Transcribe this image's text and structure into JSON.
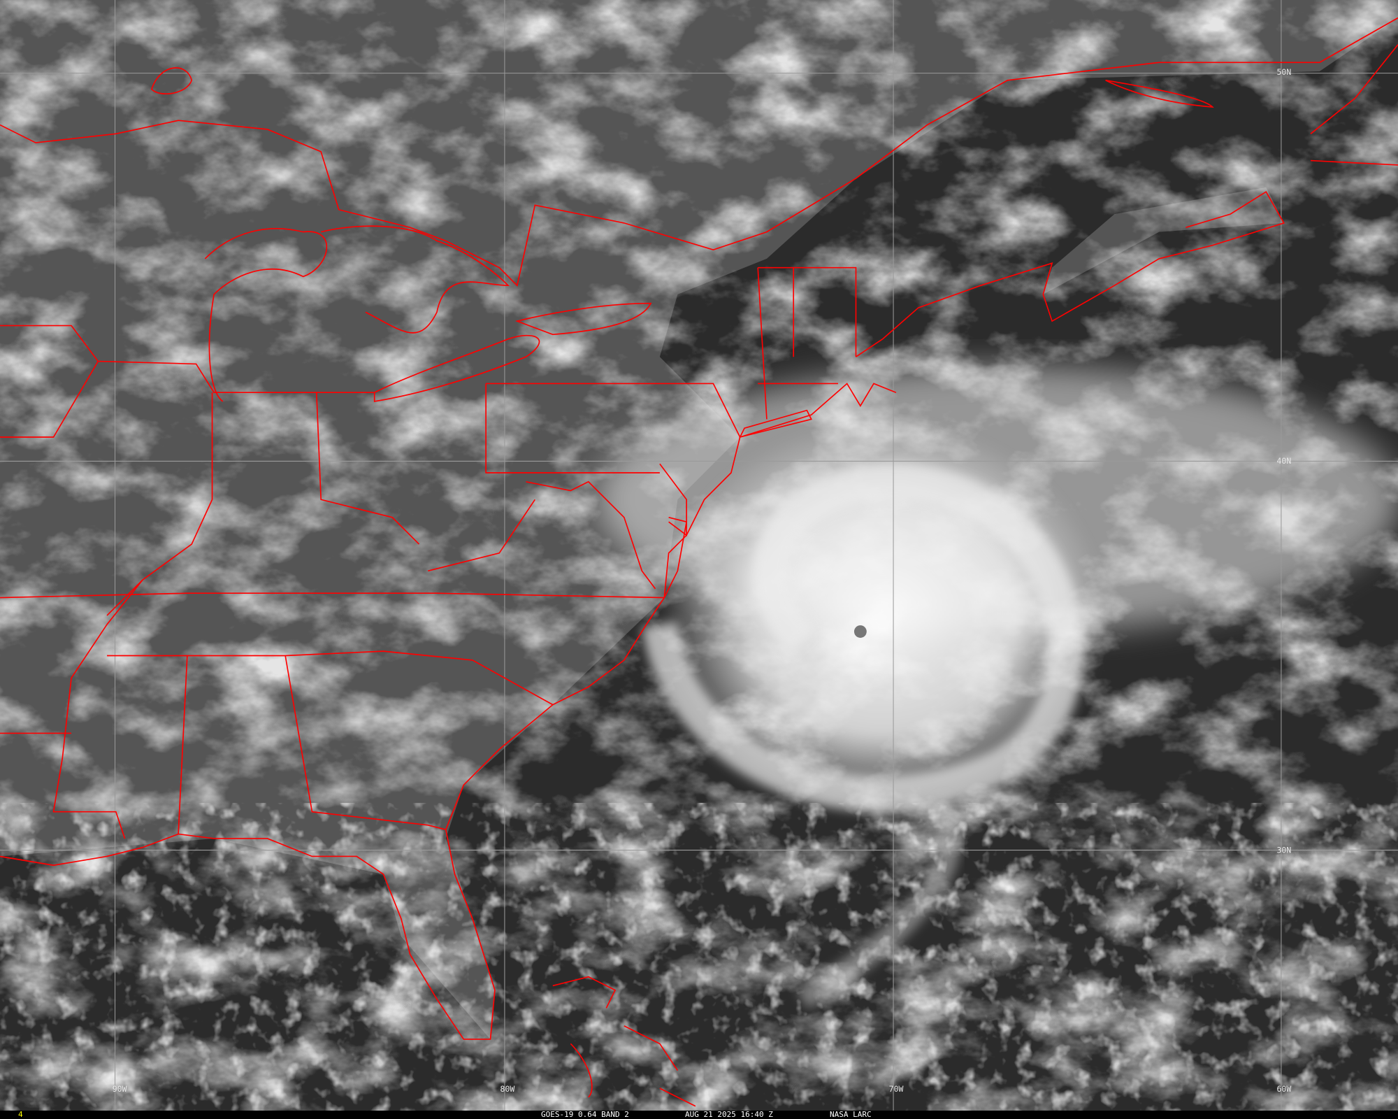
{
  "image": {
    "satellite_caption": "GOES-19 0.64 BAND 2",
    "timestamp": "AUG 21 2025 16:40 Z",
    "source": "NASA LARC",
    "frame_number": "4",
    "frame_number_color": "#ffff00",
    "border_color": "#ff0000",
    "grid_color": "#9a9a9a"
  },
  "grid_labels": {
    "lon": [
      "90W",
      "80W",
      "70W",
      "60W"
    ],
    "lat": [
      "50N",
      "40N",
      "30N"
    ]
  }
}
